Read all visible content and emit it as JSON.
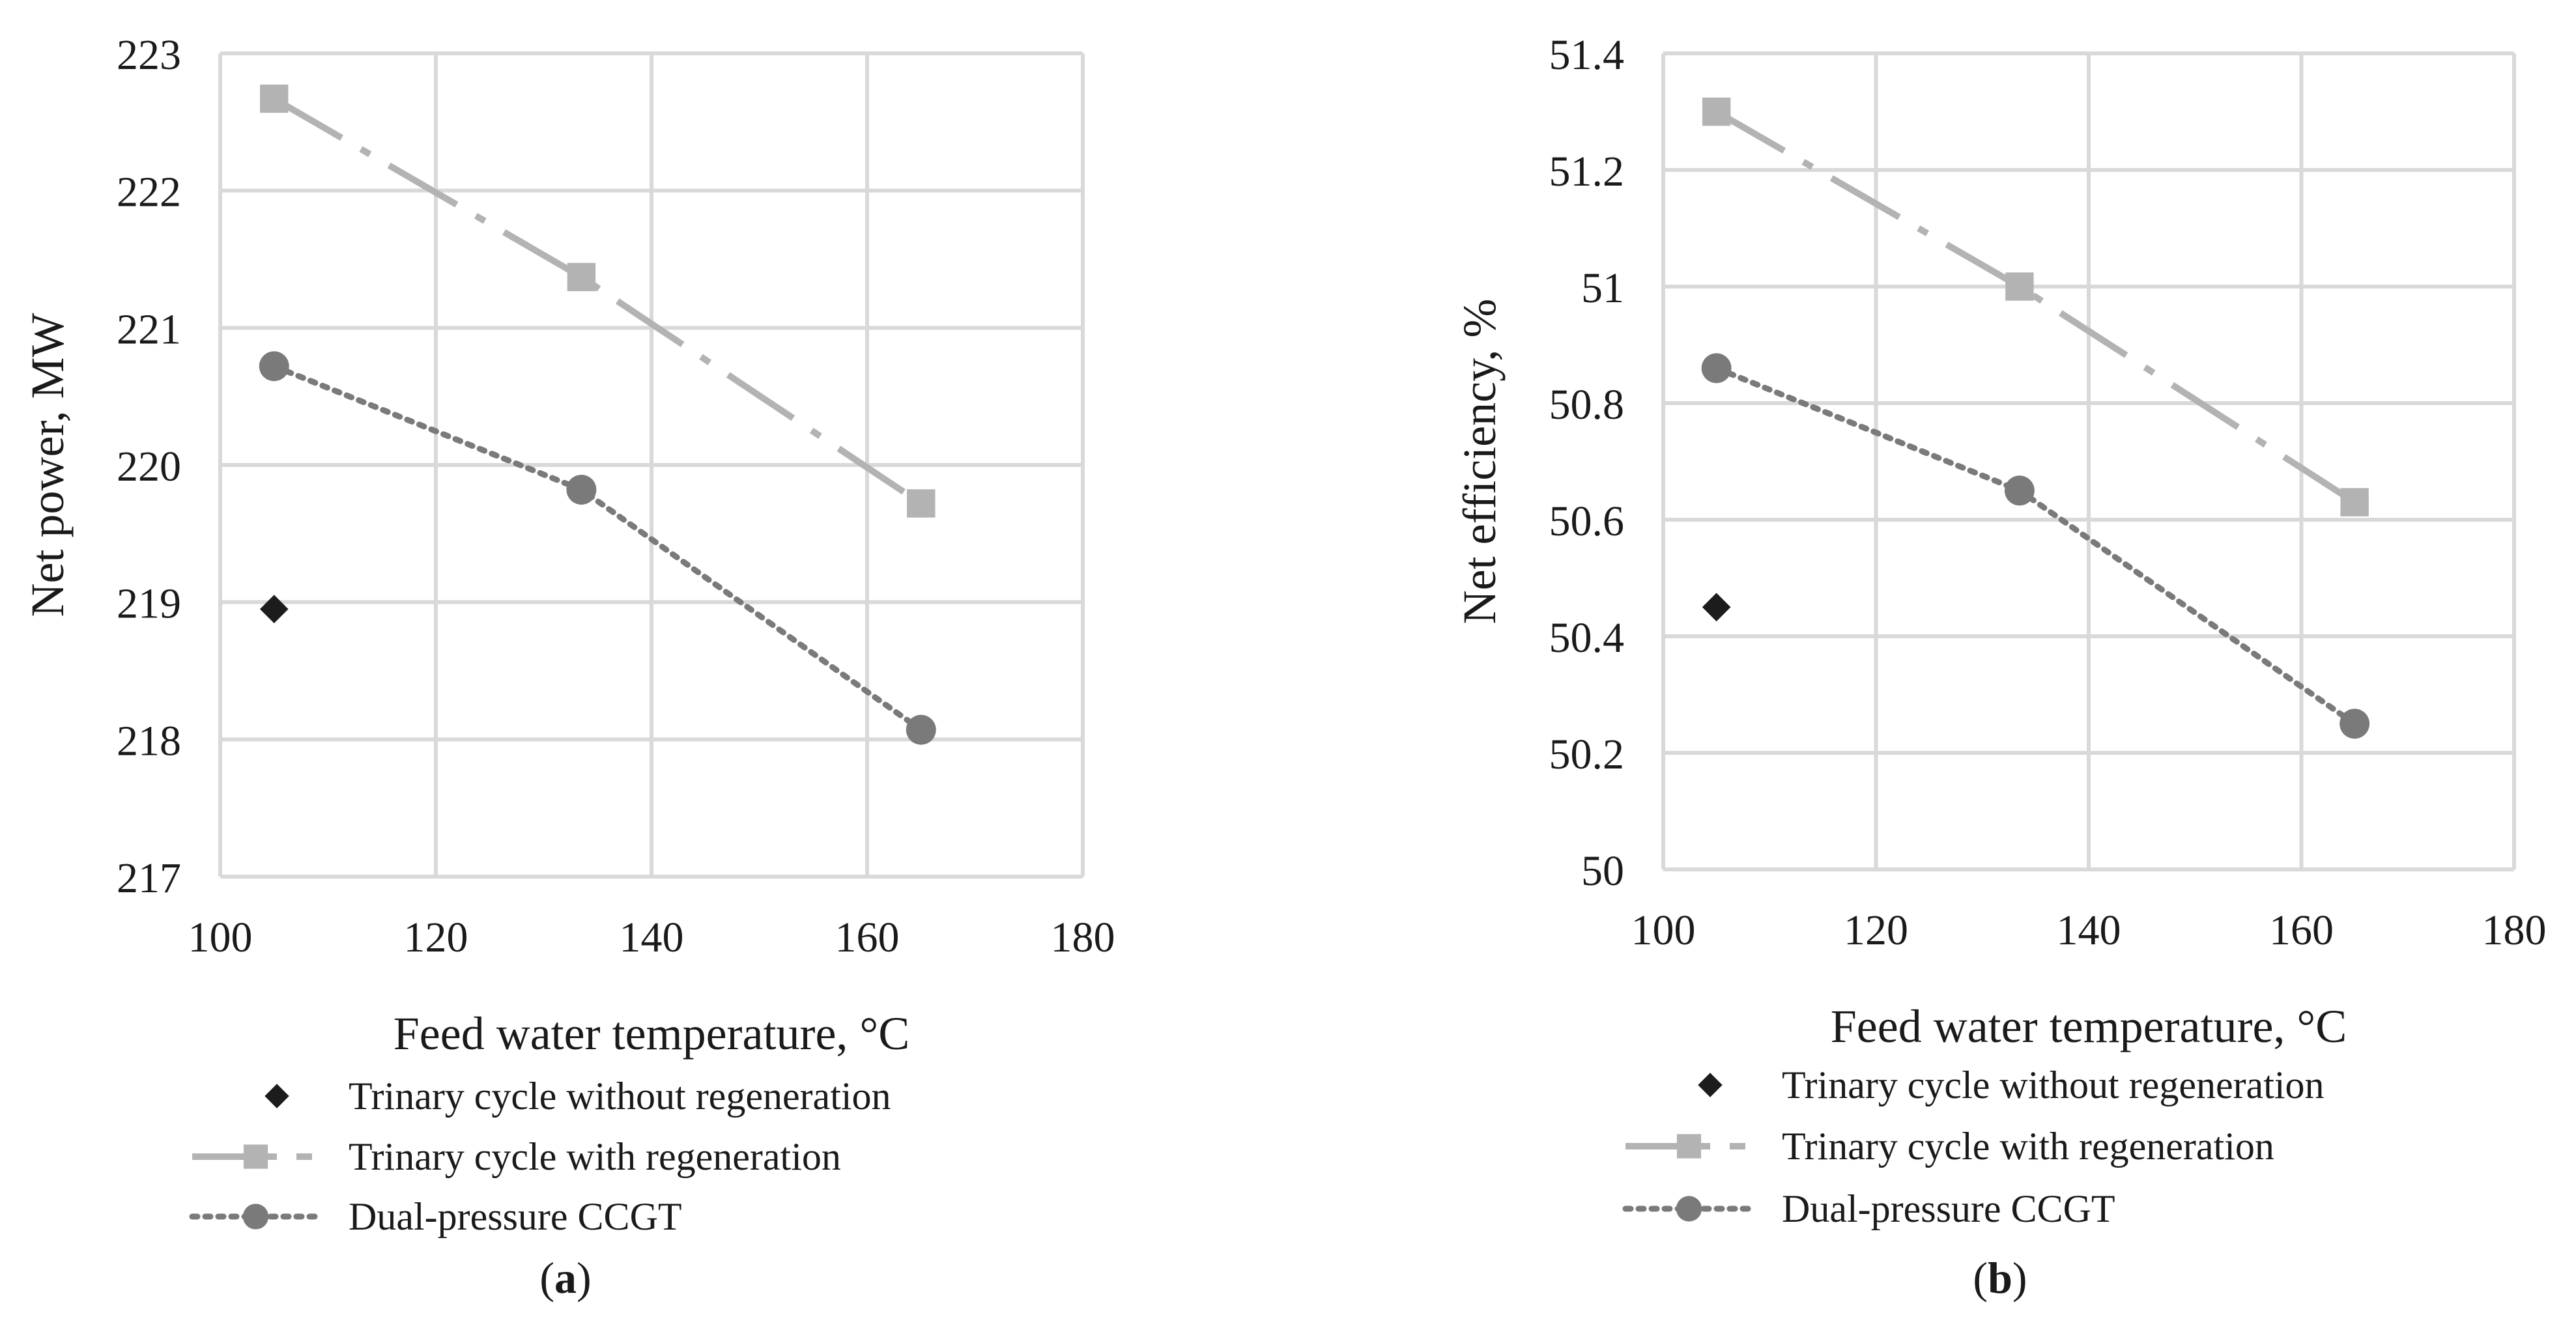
{
  "chart_data": [
    {
      "type": "line",
      "panel": "a",
      "caption": "(a)",
      "caption_letter": "a",
      "xlabel": "Feed water temperature, °C",
      "ylabel": "Net power, MW",
      "xlim": [
        100,
        180
      ],
      "ylim": [
        217,
        223
      ],
      "xticks": [
        100,
        120,
        140,
        160,
        180
      ],
      "yticks": [
        217,
        218,
        219,
        220,
        221,
        222,
        223
      ],
      "ytick_labels": [
        "217",
        "218",
        "219",
        "220",
        "221",
        "222",
        "223"
      ],
      "grid": true,
      "series": [
        {
          "name": "Trinary cycle without regeneration",
          "marker": "diamond",
          "line": "none",
          "color": "#1c1c1c",
          "x": [
            105
          ],
          "y": [
            218.95
          ]
        },
        {
          "name": "Trinary cycle with regeneration",
          "marker": "square",
          "line": "dashdot",
          "color": "#b3b3b3",
          "x": [
            105,
            133.5,
            165
          ],
          "y": [
            222.67,
            221.37,
            219.72
          ]
        },
        {
          "name": "Dual-pressure CCGT",
          "marker": "circle",
          "line": "dotted",
          "color": "#7a7a7a",
          "x": [
            105,
            133.5,
            165
          ],
          "y": [
            220.72,
            219.82,
            218.07
          ]
        }
      ]
    },
    {
      "type": "line",
      "panel": "b",
      "caption": "(b)",
      "caption_letter": "b",
      "xlabel": "Feed water temperature, °C",
      "ylabel": "Net efficiency, %",
      "xlim": [
        100,
        180
      ],
      "ylim": [
        50,
        51.4
      ],
      "xticks": [
        100,
        120,
        140,
        160,
        180
      ],
      "yticks": [
        50,
        50.2,
        50.4,
        50.6,
        50.8,
        51,
        51.2,
        51.4
      ],
      "ytick_labels": [
        "50",
        "50.2",
        "50.4",
        "50.6",
        "50.8",
        "51",
        "51.2",
        "51.4"
      ],
      "grid": true,
      "series": [
        {
          "name": "Trinary cycle without regeneration",
          "marker": "diamond",
          "line": "none",
          "color": "#1c1c1c",
          "x": [
            105
          ],
          "y": [
            50.45
          ]
        },
        {
          "name": "Trinary cycle with regeneration",
          "marker": "square",
          "line": "dashdot",
          "color": "#b3b3b3",
          "x": [
            105,
            133.5,
            165
          ],
          "y": [
            51.3,
            51.0,
            50.63
          ]
        },
        {
          "name": "Dual-pressure CCGT",
          "marker": "circle",
          "line": "dotted",
          "color": "#7a7a7a",
          "x": [
            105,
            133.5,
            165
          ],
          "y": [
            50.86,
            50.65,
            50.25
          ]
        }
      ]
    }
  ]
}
